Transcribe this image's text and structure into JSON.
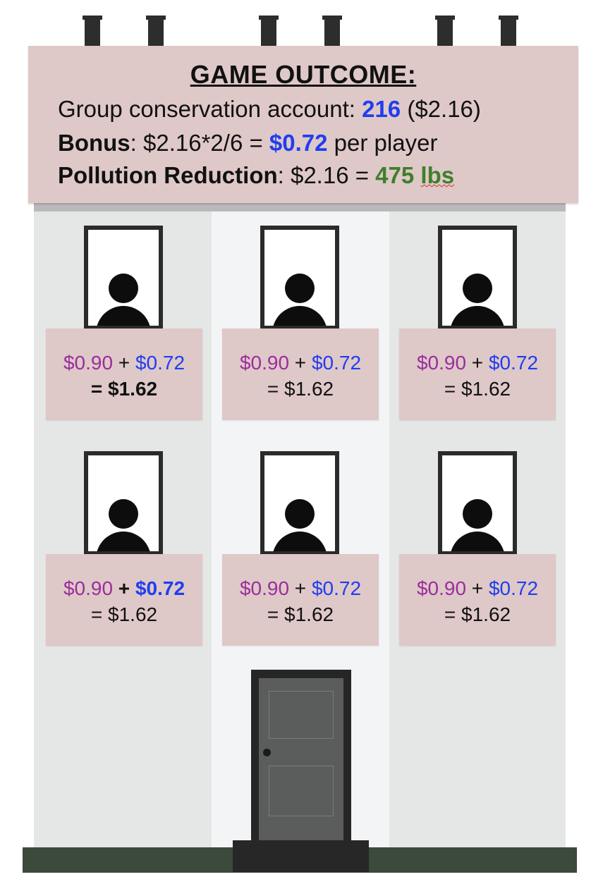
{
  "outcome": {
    "title": "GAME OUTCOME:",
    "account_label": "Group conservation account: ",
    "account_points": "216",
    "account_dollars": " ($2.16)",
    "bonus_label": "Bonus",
    "bonus_formula": ": $2.16*2/6 = ",
    "bonus_value": "$0.72",
    "bonus_suffix": " per player",
    "pollution_label": "Pollution Reduction",
    "pollution_formula": ": $2.16 = ",
    "pollution_amount": "475",
    "pollution_unit": "lbs"
  },
  "players": [
    {
      "earnings": "$0.90",
      "plus": " + ",
      "bonus": "$0.72",
      "total": "= $1.62"
    },
    {
      "earnings": "$0.90",
      "plus": " + ",
      "bonus": "$0.72",
      "total": "= $1.62"
    },
    {
      "earnings": "$0.90",
      "plus": " + ",
      "bonus": "$0.72",
      "total": "= $1.62"
    },
    {
      "earnings": "$0.90",
      "plus": " + ",
      "bonus": "$0.72",
      "total": "= $1.62"
    },
    {
      "earnings": "$0.90",
      "plus": " + ",
      "bonus": "$0.72",
      "total": "= $1.62"
    },
    {
      "earnings": "$0.90",
      "plus": " + ",
      "bonus": "$0.72",
      "total": "= $1.62"
    }
  ],
  "colors": {
    "earnings": "#9a2e9c",
    "bonus": "#1f3ef0",
    "pollution": "#3f7f2a",
    "sign_background": "#dfc8c8"
  }
}
